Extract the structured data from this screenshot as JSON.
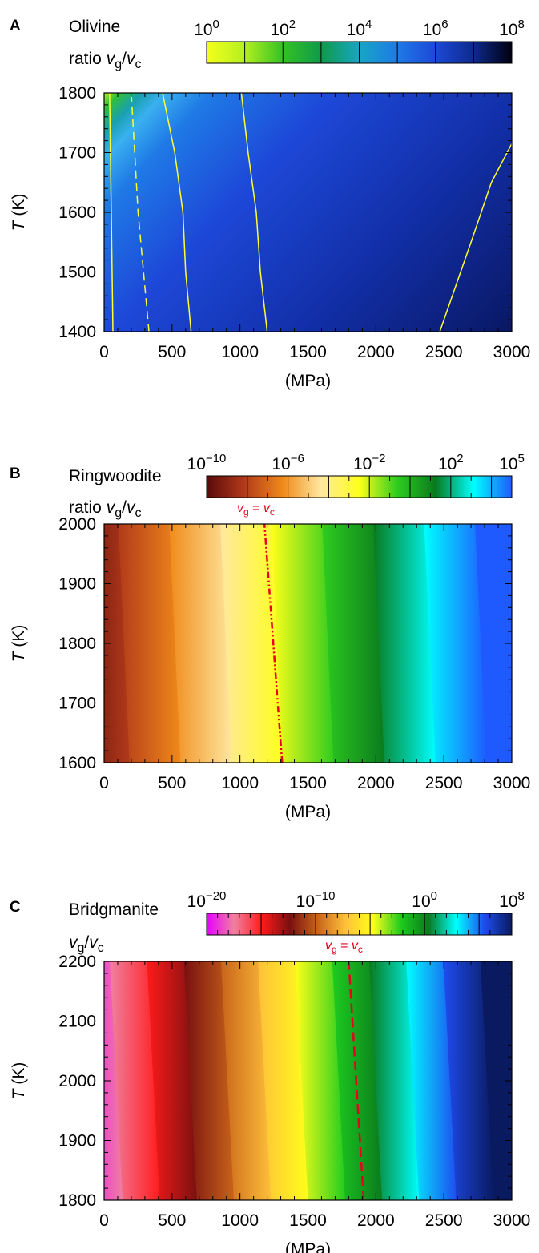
{
  "chart_data": [
    {
      "type": "heatmap",
      "panel_label": "A",
      "mineral": "Olivine",
      "colorbar_label": {
        "prefix": "ratio ",
        "num": "v",
        "num_sub": "g",
        "sep": "/",
        "den": "v",
        "den_sub": "c"
      },
      "colorbar": {
        "scale": "log",
        "range_log10": [
          0,
          8
        ],
        "ticks": [
          {
            "base": "10",
            "exp": "0",
            "log": 0
          },
          {
            "base": "10",
            "exp": "2",
            "log": 2
          },
          {
            "base": "10",
            "exp": "4",
            "log": 4
          },
          {
            "base": "10",
            "exp": "6",
            "log": 6
          },
          {
            "base": "10",
            "exp": "8",
            "log": 8
          }
        ],
        "colors": [
          "#f4ff1a",
          "#b4f020",
          "#33c224",
          "#0f9a4a",
          "#17a6c4",
          "#1f7ae6",
          "#1d48d8",
          "#0d2a8c",
          "#000010"
        ]
      },
      "ylabel": {
        "italic": "T",
        "rest": " (K)"
      },
      "xlabel": "(MPa)",
      "xlim": [
        0,
        3000
      ],
      "ylim": [
        1400,
        1800
      ],
      "xticks": [
        "0",
        "500",
        "1000",
        "1500",
        "2000",
        "2500",
        "3000"
      ],
      "yticks": [
        "1400",
        "1500",
        "1600",
        "1700",
        "1800"
      ],
      "field": "log10 ratio increases with pressure and with decreasing temperature",
      "contours": [
        {
          "color": "#ffff33",
          "points": [
            [
              65,
              1400
            ],
            [
              40,
              1800
            ]
          ]
        },
        {
          "color": "#ffff33",
          "dashed": true,
          "points": [
            [
              330,
              1400
            ],
            [
              250,
              1600
            ],
            [
              200,
              1800
            ]
          ]
        },
        {
          "color": "#ffff33",
          "points": [
            [
              640,
              1400
            ],
            [
              600,
              1500
            ],
            [
              580,
              1600
            ],
            [
              520,
              1700
            ],
            [
              430,
              1800
            ]
          ]
        },
        {
          "color": "#ffff33",
          "points": [
            [
              1200,
              1400
            ],
            [
              1150,
              1500
            ],
            [
              1120,
              1600
            ],
            [
              1060,
              1700
            ],
            [
              1010,
              1800
            ]
          ]
        },
        {
          "color": "#ffff33",
          "points": [
            [
              2470,
              1400
            ],
            [
              2700,
              1550
            ],
            [
              2850,
              1650
            ],
            [
              3000,
              1715
            ]
          ]
        }
      ]
    },
    {
      "type": "heatmap",
      "panel_label": "B",
      "mineral": "Ringwoodite",
      "colorbar_label": {
        "prefix": "ratio ",
        "num": "v",
        "num_sub": "g",
        "sep": "/",
        "den": "v",
        "den_sub": "c"
      },
      "colorbar": {
        "scale": "log",
        "range_log10": [
          -10,
          5
        ],
        "ticks": [
          {
            "base": "10",
            "exp": "−10",
            "log": -10
          },
          {
            "base": "10",
            "exp": "−6",
            "log": -6
          },
          {
            "base": "10",
            "exp": "−2",
            "log": -2
          },
          {
            "base": "10",
            "exp": "2",
            "log": 2
          },
          {
            "base": "10",
            "exp": "5",
            "log": 5
          }
        ],
        "colors": [
          "#5a0a0a",
          "#b23a1a",
          "#f08a1a",
          "#ffe8a0",
          "#ffff1a",
          "#2ecc1e",
          "#0a7a1e",
          "#00ffff",
          "#1e5aff"
        ]
      },
      "ylabel": {
        "italic": "T",
        "rest": " (K)"
      },
      "xlabel": "(MPa)",
      "xlim": [
        0,
        3000
      ],
      "ylim": [
        1600,
        2000
      ],
      "xticks": [
        "0",
        "500",
        "1000",
        "1500",
        "2000",
        "2500",
        "3000"
      ],
      "yticks": [
        "1600",
        "1700",
        "1800",
        "1900",
        "2000"
      ],
      "annotation": {
        "text_num": "v",
        "text_num_sub": "g",
        "text_eq": " = ",
        "text_den": "v",
        "text_den_sub": "c",
        "color": "#e8001c"
      },
      "equality_line": {
        "style": "dash-dot-dot",
        "points": [
          [
            1310,
            1600
          ],
          [
            1180,
            2000
          ]
        ]
      }
    },
    {
      "type": "heatmap",
      "panel_label": "C",
      "mineral": "Bridgmanite",
      "colorbar_label": {
        "prefix": "",
        "num": "v",
        "num_sub": "g",
        "sep": "/",
        "den": "v",
        "den_sub": "c"
      },
      "colorbar": {
        "scale": "log",
        "range_log10": [
          -20,
          8
        ],
        "ticks": [
          {
            "base": "10",
            "exp": "−20",
            "log": -20
          },
          {
            "base": "10",
            "exp": "−10",
            "log": -10
          },
          {
            "base": "10",
            "exp": "0",
            "log": 0
          },
          {
            "base": "10",
            "exp": "8",
            "log": 8
          }
        ],
        "colors": [
          "#e600ff",
          "#f080a0",
          "#ff1a1a",
          "#7a1010",
          "#c8641a",
          "#ffc03a",
          "#ffff1a",
          "#1ecc1e",
          "#0a7a1e",
          "#00ffff",
          "#1e4cf0",
          "#0a1a60"
        ]
      },
      "ylabel": {
        "italic": "T",
        "rest": " (K)"
      },
      "xlabel": "(MPa)",
      "xlim": [
        0,
        3000
      ],
      "ylim": [
        1800,
        2200
      ],
      "xticks": [
        "0",
        "500",
        "1000",
        "1500",
        "2000",
        "2500",
        "3000"
      ],
      "yticks": [
        "1800",
        "1900",
        "2000",
        "2100",
        "2200"
      ],
      "annotation": {
        "text_num": "v",
        "text_num_sub": "g",
        "text_eq": " = ",
        "text_den": "v",
        "text_den_sub": "c",
        "color": "#e8001c"
      },
      "equality_line": {
        "style": "dashed",
        "points": [
          [
            1910,
            1800
          ],
          [
            1800,
            2200
          ]
        ]
      }
    }
  ]
}
